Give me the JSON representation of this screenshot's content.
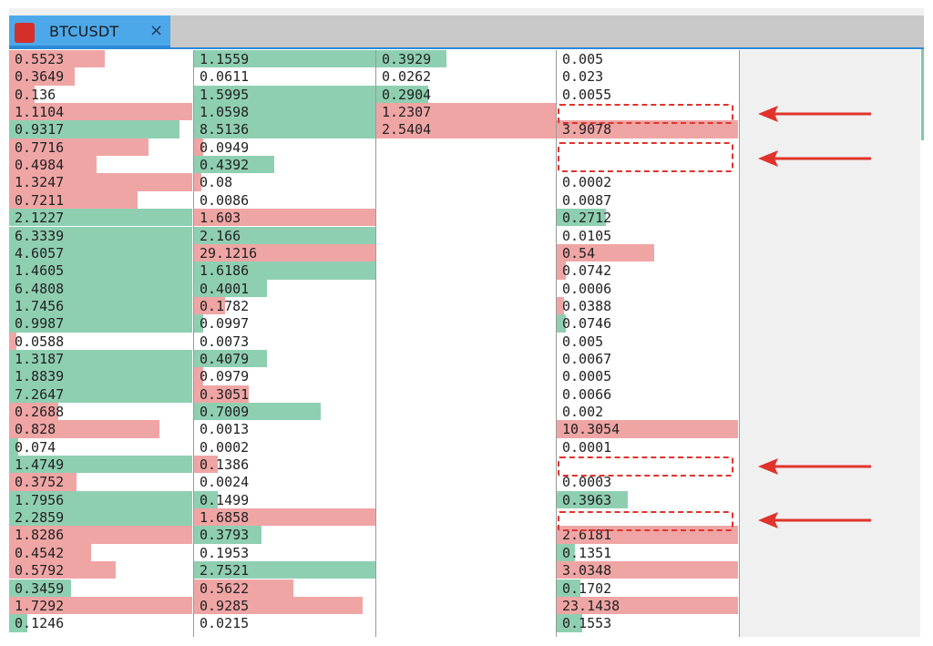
{
  "window": {
    "tab": {
      "title": "BTCUSDT",
      "close_glyph": "×",
      "icon": "red-square-icon"
    }
  },
  "colors": {
    "green": "#8fcfb1",
    "green_light": "#a6d9c0",
    "red": "#f0a5a5",
    "red_light": "#f3bcbc",
    "annotation": "#e0332c",
    "tab_active": "#4da8ea"
  },
  "annotations": {
    "style": "dashed-red-box-with-arrow",
    "count": 4,
    "points_to": "column 4 empty rows"
  },
  "columns": [
    {
      "rows": [
        {
          "v": "0.5523",
          "s": "sell",
          "fill": 0.52
        },
        {
          "v": "0.3649",
          "s": "sell",
          "fill": 0.36
        },
        {
          "v": "0.136",
          "s": "sell",
          "fill": 0.14
        },
        {
          "v": "1.1104",
          "s": "sell",
          "fill": 1.0
        },
        {
          "v": "0.9317",
          "s": "buy",
          "fill": 0.93
        },
        {
          "v": "0.7716",
          "s": "sell",
          "fill": 0.76
        },
        {
          "v": "0.4984",
          "s": "sell",
          "fill": 0.48
        },
        {
          "v": "1.3247",
          "s": "sell",
          "fill": 1.0
        },
        {
          "v": "0.7211",
          "s": "sell",
          "fill": 0.7
        },
        {
          "v": "2.1227",
          "s": "buy",
          "fill": 1.0
        },
        {
          "v": "6.3339",
          "s": "buy",
          "fill": 1.0
        },
        {
          "v": "4.6057",
          "s": "buy",
          "fill": 1.0
        },
        {
          "v": "1.4605",
          "s": "buy",
          "fill": 1.0
        },
        {
          "v": "6.4808",
          "s": "buy",
          "fill": 1.0
        },
        {
          "v": "1.7456",
          "s": "buy",
          "fill": 1.0
        },
        {
          "v": "0.9987",
          "s": "buy",
          "fill": 1.0
        },
        {
          "v": "0.0588",
          "s": "sell",
          "fill": 0.04
        },
        {
          "v": "1.3187",
          "s": "buy",
          "fill": 1.0
        },
        {
          "v": "1.8839",
          "s": "buy",
          "fill": 1.0
        },
        {
          "v": "7.2647",
          "s": "buy",
          "fill": 1.0
        },
        {
          "v": "0.2688",
          "s": "sell",
          "fill": 0.27
        },
        {
          "v": "0.828",
          "s": "sell",
          "fill": 0.82
        },
        {
          "v": "0.074",
          "s": "buy",
          "fill": 0.05
        },
        {
          "v": "1.4749",
          "s": "buy",
          "fill": 1.0
        },
        {
          "v": "0.3752",
          "s": "sell",
          "fill": 0.37
        },
        {
          "v": "1.7956",
          "s": "buy",
          "fill": 1.0
        },
        {
          "v": "2.2859",
          "s": "buy",
          "fill": 1.0
        },
        {
          "v": "1.8286",
          "s": "sell",
          "fill": 1.0
        },
        {
          "v": "0.4542",
          "s": "sell",
          "fill": 0.45
        },
        {
          "v": "0.5792",
          "s": "sell",
          "fill": 0.58
        },
        {
          "v": "0.3459",
          "s": "buy",
          "fill": 0.34
        },
        {
          "v": "1.7292",
          "s": "sell",
          "fill": 1.0
        },
        {
          "v": "0.1246",
          "s": "buy",
          "fill": 0.1
        }
      ]
    },
    {
      "rows": [
        {
          "v": "1.1559",
          "s": "buy",
          "fill": 1.0
        },
        {
          "v": "0.0611",
          "s": "none",
          "fill": 0
        },
        {
          "v": "1.5995",
          "s": "buy",
          "fill": 1.0
        },
        {
          "v": "1.0598",
          "s": "buy",
          "fill": 1.0
        },
        {
          "v": "8.5136",
          "s": "buy",
          "fill": 1.0
        },
        {
          "v": "0.0949",
          "s": "sell",
          "fill": 0.05
        },
        {
          "v": "0.4392",
          "s": "buy",
          "fill": 0.44
        },
        {
          "v": "0.08",
          "s": "sell",
          "fill": 0.04
        },
        {
          "v": "0.0086",
          "s": "none",
          "fill": 0
        },
        {
          "v": "1.603",
          "s": "sell",
          "fill": 1.0
        },
        {
          "v": "2.166",
          "s": "buy",
          "fill": 1.0
        },
        {
          "v": "29.1216",
          "s": "sell",
          "fill": 1.0,
          "boxed": true
        },
        {
          "v": "1.6186",
          "s": "buy",
          "fill": 1.0
        },
        {
          "v": "0.4001",
          "s": "buy",
          "fill": 0.4
        },
        {
          "v": "0.1782",
          "s": "sell",
          "fill": 0.17
        },
        {
          "v": "0.0997",
          "s": "buy",
          "fill": 0.05
        },
        {
          "v": "0.0073",
          "s": "none",
          "fill": 0
        },
        {
          "v": "0.4079",
          "s": "buy",
          "fill": 0.4
        },
        {
          "v": "0.0979",
          "s": "sell",
          "fill": 0.05
        },
        {
          "v": "0.3051",
          "s": "sell",
          "fill": 0.3
        },
        {
          "v": "0.7009",
          "s": "buy",
          "fill": 0.7
        },
        {
          "v": "0.0013",
          "s": "none",
          "fill": 0
        },
        {
          "v": "0.0002",
          "s": "none",
          "fill": 0
        },
        {
          "v": "0.1386",
          "s": "sell",
          "fill": 0.13
        },
        {
          "v": "0.0024",
          "s": "none",
          "fill": 0
        },
        {
          "v": "0.1499",
          "s": "buy",
          "fill": 0.13
        },
        {
          "v": "1.6858",
          "s": "sell",
          "fill": 1.0
        },
        {
          "v": "0.3793",
          "s": "buy",
          "fill": 0.37
        },
        {
          "v": "0.1953",
          "s": "none",
          "fill": 0
        },
        {
          "v": "2.7521",
          "s": "buy",
          "fill": 1.0
        },
        {
          "v": "0.5622",
          "s": "sell",
          "fill": 0.55
        },
        {
          "v": "0.9285",
          "s": "sell",
          "fill": 0.93
        },
        {
          "v": "0.0215",
          "s": "none",
          "fill": 0
        }
      ]
    },
    {
      "rows": [
        {
          "v": "0.3929",
          "s": "buy",
          "fill": 0.39
        },
        {
          "v": "0.0262",
          "s": "none",
          "fill": 0
        },
        {
          "v": "0.2904",
          "s": "buy",
          "fill": 0.29
        },
        {
          "v": "1.2307",
          "s": "sell",
          "fill": 1.0
        },
        {
          "v": "2.5404",
          "s": "sell",
          "fill": 1.0
        }
      ]
    },
    {
      "rows": [
        {
          "v": "0.005",
          "s": "none",
          "fill": 0
        },
        {
          "v": "0.023",
          "s": "none",
          "fill": 0
        },
        {
          "v": "0.0055",
          "s": "none",
          "fill": 0
        },
        {
          "v": "",
          "s": "none",
          "fill": 0
        },
        {
          "v": "3.9078",
          "s": "sell",
          "fill": 1.0
        },
        {
          "v": "",
          "s": "none",
          "fill": 0
        },
        {
          "v": "",
          "s": "none",
          "fill": 0
        },
        {
          "v": "0.0002",
          "s": "none",
          "fill": 0
        },
        {
          "v": "0.0087",
          "s": "none",
          "fill": 0
        },
        {
          "v": "0.2712",
          "s": "buy",
          "fill": 0.27
        },
        {
          "v": "0.0105",
          "s": "none",
          "fill": 0
        },
        {
          "v": "0.54",
          "s": "sell",
          "fill": 0.54
        },
        {
          "v": "0.0742",
          "s": "sell",
          "fill": 0.05
        },
        {
          "v": "0.0006",
          "s": "none",
          "fill": 0
        },
        {
          "v": "0.0388",
          "s": "sell",
          "fill": 0.04
        },
        {
          "v": "0.0746",
          "s": "buy",
          "fill": 0.05
        },
        {
          "v": "0.005",
          "s": "none",
          "fill": 0
        },
        {
          "v": "0.0067",
          "s": "none",
          "fill": 0
        },
        {
          "v": "0.0005",
          "s": "none",
          "fill": 0
        },
        {
          "v": "0.0066",
          "s": "none",
          "fill": 0
        },
        {
          "v": "0.002",
          "s": "none",
          "fill": 0
        },
        {
          "v": "10.3054",
          "s": "sell",
          "fill": 1.0
        },
        {
          "v": "0.0001",
          "s": "none",
          "fill": 0
        },
        {
          "v": "",
          "s": "none",
          "fill": 0
        },
        {
          "v": "0.0003",
          "s": "none",
          "fill": 0
        },
        {
          "v": "0.3963",
          "s": "buy",
          "fill": 0.39
        },
        {
          "v": "",
          "s": "none",
          "fill": 0
        },
        {
          "v": "2.6181",
          "s": "sell",
          "fill": 1.0
        },
        {
          "v": "0.1351",
          "s": "buy",
          "fill": 0.1
        },
        {
          "v": "3.0348",
          "s": "sell",
          "fill": 1.0
        },
        {
          "v": "0.1702",
          "s": "buy",
          "fill": 0.13
        },
        {
          "v": "23.1438",
          "s": "sell",
          "fill": 1.0,
          "boxed": true
        },
        {
          "v": "0.1553",
          "s": "buy",
          "fill": 0.14
        }
      ]
    },
    {
      "rows": []
    }
  ]
}
